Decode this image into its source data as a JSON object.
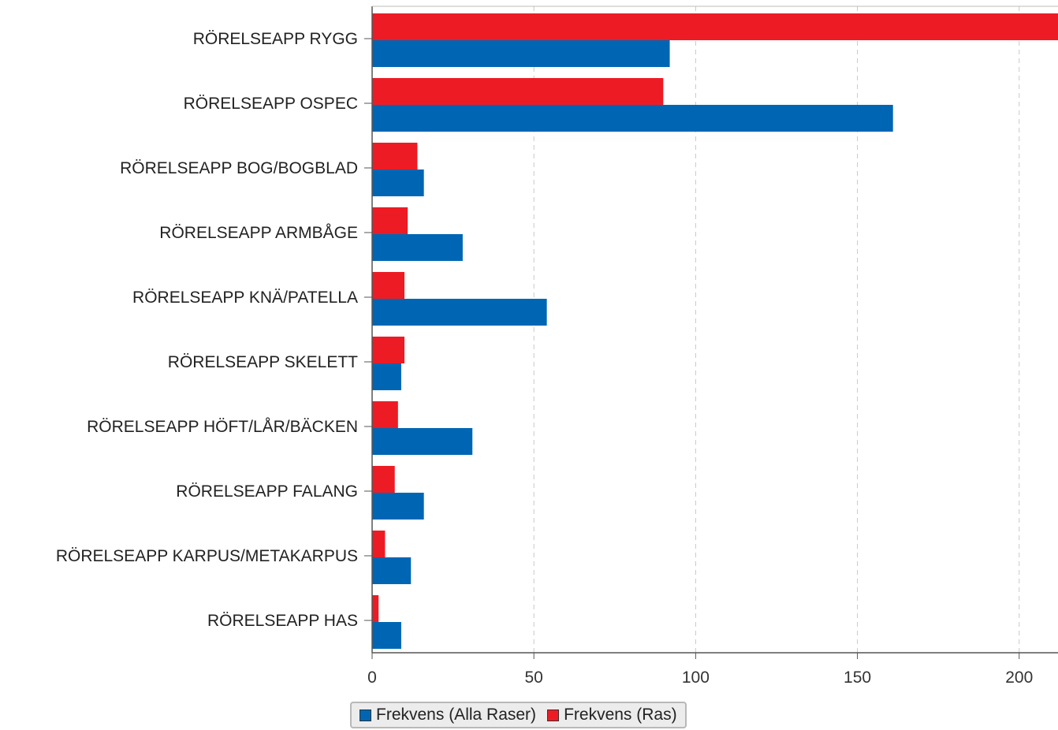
{
  "chart_data": {
    "type": "bar",
    "orientation": "horizontal",
    "categories": [
      "RÖRELSEAPP RYGG",
      "RÖRELSEAPP OSPEC",
      "RÖRELSEAPP BOG/BOGBLAD",
      "RÖRELSEAPP ARMBÅGE",
      "RÖRELSEAPP KNÄ/PATELLA",
      "RÖRELSEAPP SKELETT",
      "RÖRELSEAPP HÖFT/LÅR/BÄCKEN",
      "RÖRELSEAPP FALANG",
      "RÖRELSEAPP KARPUS/METAKARPUS",
      "RÖRELSEAPP HAS"
    ],
    "series": [
      {
        "name": "Frekvens (Ras)",
        "color": "#ed1c24",
        "values": [
          215,
          90,
          14,
          11,
          10,
          10,
          8,
          7,
          4,
          2
        ]
      },
      {
        "name": "Frekvens (Alla Raser)",
        "color": "#0066b3",
        "values": [
          92,
          161,
          16,
          28,
          54,
          9,
          31,
          16,
          12,
          9
        ]
      }
    ],
    "x_ticks": [
      "0",
      "50",
      "100",
      "150",
      "200"
    ],
    "xlim": [
      0,
      212
    ],
    "grid": "vertical dashed",
    "legend": {
      "placement": "bottom",
      "items": [
        {
          "label": "Frekvens (Alla Raser)",
          "color": "#0066b3"
        },
        {
          "label": "Frekvens (Ras)",
          "color": "#ed1c24"
        }
      ]
    }
  }
}
